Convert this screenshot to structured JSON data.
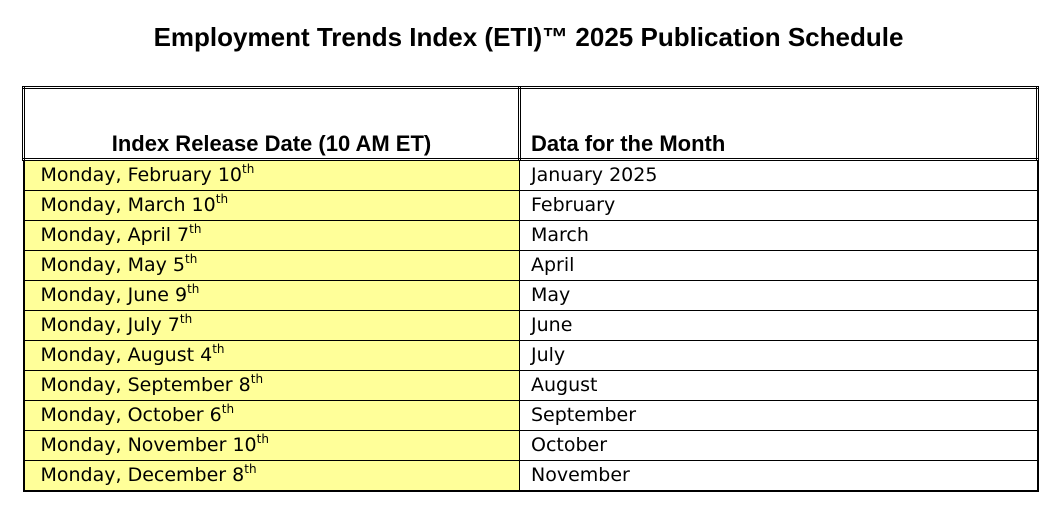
{
  "title": "Employment Trends Index (ETI)™ 2025 Publication Schedule",
  "table": {
    "headers": {
      "release": "Index Release Date (10 AM ET)",
      "month": "Data for the Month"
    },
    "rows": [
      {
        "release": "Monday, February 10",
        "suffix": "th",
        "month": "January 2025"
      },
      {
        "release": "Monday, March 10",
        "suffix": "th",
        "month": "February"
      },
      {
        "release": "Monday, April 7",
        "suffix": "th",
        "month": "March"
      },
      {
        "release": "Monday, May 5",
        "suffix": "th",
        "month": "April"
      },
      {
        "release": "Monday, June 9",
        "suffix": "th",
        "month": "May"
      },
      {
        "release": "Monday, July 7",
        "suffix": "th",
        "month": "June"
      },
      {
        "release": "Monday, August 4",
        "suffix": "th",
        "month": "July"
      },
      {
        "release": "Monday, September 8",
        "suffix": "th",
        "month": "August"
      },
      {
        "release": "Monday, October 6",
        "suffix": "th",
        "month": "September"
      },
      {
        "release": "Monday, November 10",
        "suffix": "th",
        "month": "October"
      },
      {
        "release": "Monday, December 8",
        "suffix": "th",
        "month": "November"
      }
    ]
  },
  "colors": {
    "release_column_fill": "#ffff99",
    "border": "#000000",
    "text": "#000000"
  }
}
